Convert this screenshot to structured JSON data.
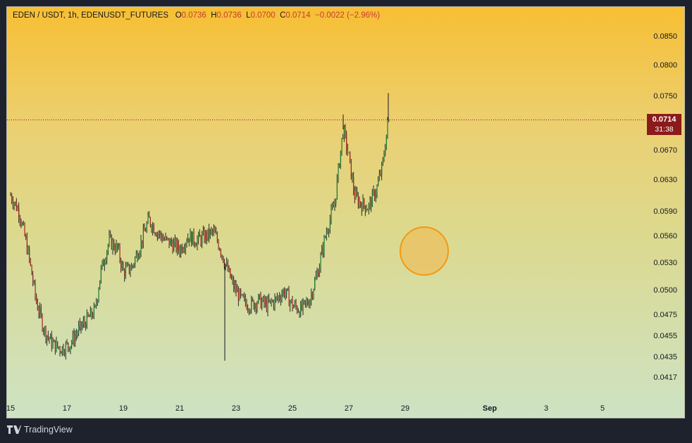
{
  "legend": {
    "symbol": "EDEN / USDT, 1h, EDENUSDT_FUTURES",
    "o_label": "O",
    "o_value": "0.0736",
    "h_label": "H",
    "h_value": "0.0736",
    "l_label": "L",
    "l_value": "0.0700",
    "c_label": "C",
    "c_value": "0.0714",
    "change": "−0.0022 (−2.96%)"
  },
  "last_price": {
    "value": "0.0714",
    "countdown": "31:38"
  },
  "footer": {
    "brand": "TradingView"
  },
  "colors": {
    "up": "#1a7a33",
    "down": "#a8231f",
    "price_label": "#8b1a1a",
    "marker": "#f19a12"
  },
  "chart_data": {
    "type": "candlestick",
    "title": "EDEN / USDT, 1h, EDENUSDT_FUTURES",
    "interval": "1h",
    "x_ticks": [
      "15",
      "17",
      "19",
      "21",
      "23",
      "25",
      "27",
      "29",
      "Sep",
      "3",
      "5"
    ],
    "y_ticks": [
      "0.0850",
      "0.0800",
      "0.0750",
      "0.0670",
      "0.0630",
      "0.0590",
      "0.0560",
      "0.0530",
      "0.0500",
      "0.0475",
      "0.0455",
      "0.0435",
      "0.0417"
    ],
    "y_scale": "log",
    "ylim": [
      0.0405,
      0.088
    ],
    "last_close": 0.0714,
    "ohlc_latest": {
      "open": 0.0736,
      "high": 0.0736,
      "low": 0.07,
      "close": 0.0714
    },
    "price_path": [
      [
        "15",
        0.061
      ],
      [
        "15.3",
        0.059
      ],
      [
        "15.6",
        0.0545
      ],
      [
        "15.9",
        0.049
      ],
      [
        "16.2",
        0.046
      ],
      [
        "16.5",
        0.0447
      ],
      [
        "16.8",
        0.0443
      ],
      [
        "17.1",
        0.0447
      ],
      [
        "17.4",
        0.046
      ],
      [
        "17.7",
        0.047
      ],
      [
        "18.0",
        0.048
      ],
      [
        "18.2",
        0.052
      ],
      [
        "18.5",
        0.0555
      ],
      [
        "18.8",
        0.0545
      ],
      [
        "19.0",
        0.052
      ],
      [
        "19.3",
        0.0525
      ],
      [
        "19.6",
        0.055
      ],
      [
        "19.9",
        0.058
      ],
      [
        "20.2",
        0.0565
      ],
      [
        "20.5",
        0.0555
      ],
      [
        "20.8",
        0.055
      ],
      [
        "21.0",
        0.0545
      ],
      [
        "21.3",
        0.056
      ],
      [
        "21.6",
        0.0555
      ],
      [
        "21.9",
        0.056
      ],
      [
        "22.2",
        0.0565
      ],
      [
        "22.4",
        0.055
      ],
      [
        "22.6",
        0.053
      ],
      [
        "22.9",
        0.0505
      ],
      [
        "23.2",
        0.049
      ],
      [
        "23.5",
        0.0485
      ],
      [
        "23.8",
        0.049
      ],
      [
        "24.1",
        0.0485
      ],
      [
        "24.4",
        0.049
      ],
      [
        "24.7",
        0.05
      ],
      [
        "25.0",
        0.0485
      ],
      [
        "25.3",
        0.048
      ],
      [
        "25.6",
        0.049
      ],
      [
        "25.9",
        0.052
      ],
      [
        "26.2",
        0.0565
      ],
      [
        "26.5",
        0.06
      ],
      [
        "26.8",
        0.07
      ],
      [
        "27.0",
        0.066
      ],
      [
        "27.2",
        0.061
      ],
      [
        "27.4",
        0.06
      ],
      [
        "27.7",
        0.0595
      ],
      [
        "28.0",
        0.062
      ],
      [
        "28.2",
        0.065
      ],
      [
        "28.4",
        0.0714
      ]
    ],
    "extremes": [
      {
        "label": "spike_low",
        "x": "22.6",
        "value": 0.0432
      },
      {
        "label": "high",
        "x": "28.4",
        "value": 0.0755
      },
      {
        "label": "wick_high",
        "x": "26.8",
        "value": 0.0722
      }
    ]
  }
}
